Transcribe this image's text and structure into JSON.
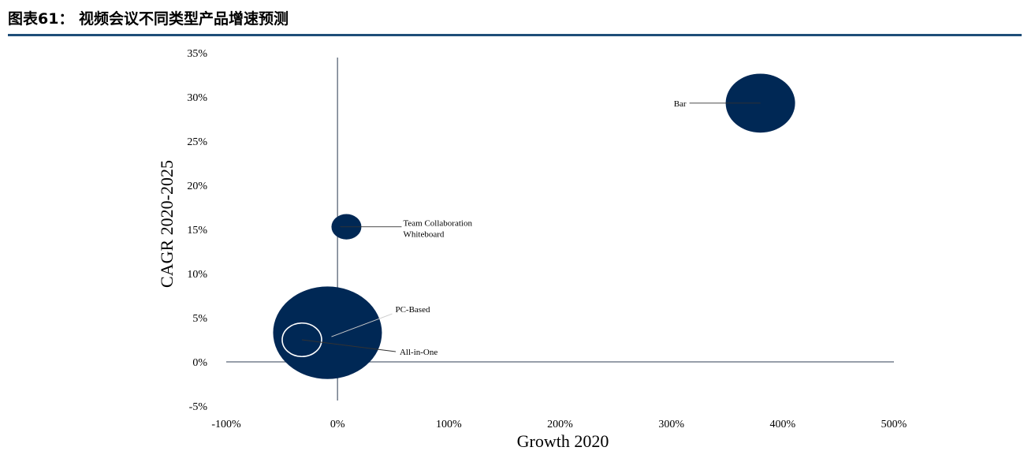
{
  "figure": {
    "title": "图表61：  视频会议不同类型产品增速预测"
  },
  "chart_data": {
    "type": "scatter",
    "subtype": "bubble",
    "xlabel": "Growth 2020",
    "ylabel": "CAGR 2020-2025",
    "xlim": [
      -100,
      500
    ],
    "ylim": [
      -5,
      35
    ],
    "x_ticks": [
      "-100%",
      "0%",
      "100%",
      "200%",
      "300%",
      "400%",
      "500%"
    ],
    "x_tick_values": [
      -100,
      0,
      100,
      200,
      300,
      400,
      500
    ],
    "y_ticks": [
      "35%",
      "30%",
      "25%",
      "20%",
      "15%",
      "10%",
      "5%",
      "0%",
      "-5%"
    ],
    "y_tick_values": [
      35,
      30,
      25,
      20,
      15,
      10,
      5,
      0,
      -5
    ],
    "colors": {
      "bubble": "#002855",
      "axis": "#5a6677",
      "leader": "#333333"
    },
    "series": [
      {
        "name": "Bar",
        "label_lines": [
          "Bar"
        ],
        "x": 380,
        "y": 29.3,
        "size": 44,
        "style": "filled",
        "label_side": "left"
      },
      {
        "name": "Team Collaboration Whiteboard",
        "label_lines": [
          "Team Collaboration",
          "Whiteboard"
        ],
        "x": 8,
        "y": 15.3,
        "size": 19,
        "style": "filled",
        "label_side": "right"
      },
      {
        "name": "PC-Based",
        "label_lines": [
          "PC-Based"
        ],
        "x": -9,
        "y": 3.3,
        "size": 69,
        "style": "filled",
        "label_side": "right"
      },
      {
        "name": "All-in-One",
        "label_lines": [
          "All-in-One"
        ],
        "x": -32,
        "y": 2.5,
        "size": 25,
        "style": "outline",
        "label_side": "right"
      }
    ]
  }
}
